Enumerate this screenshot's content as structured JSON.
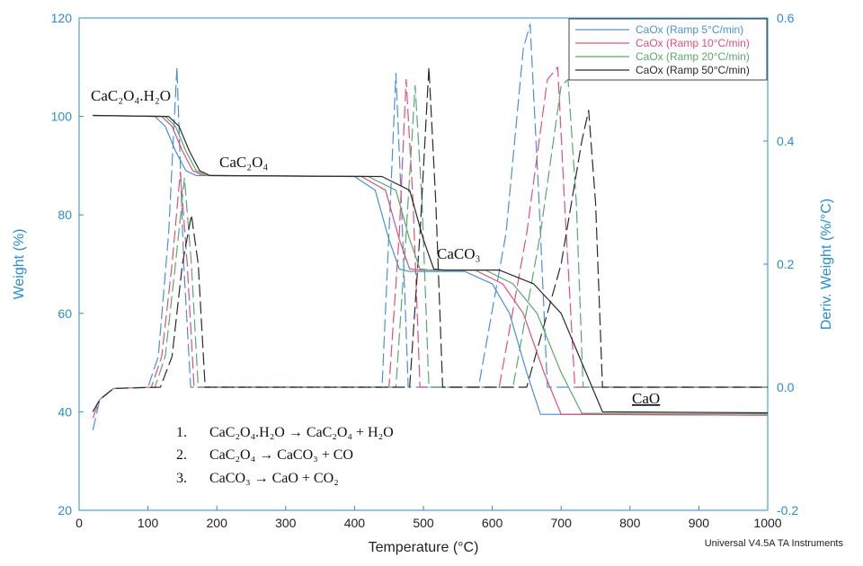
{
  "chart_data": {
    "type": "line",
    "xlabel": "Temperature (°C)",
    "ylabel": "Weight (%)",
    "y2label": "Deriv. Weight (%/°C)",
    "xlim": [
      0,
      1000
    ],
    "ylim": [
      20,
      120
    ],
    "y2lim": [
      -0.2,
      0.6
    ],
    "x_ticks": [
      "0",
      "100",
      "200",
      "300",
      "400",
      "500",
      "600",
      "700",
      "800",
      "900",
      "1000"
    ],
    "y_ticks": [
      "20",
      "40",
      "60",
      "80",
      "100",
      "120"
    ],
    "y2_ticks": [
      "-0.2",
      "0.0",
      "0.2",
      "0.4",
      "0.6"
    ],
    "legend_position": "top-right",
    "series": [
      {
        "name": "CaOx (Ramp 5°C/min)",
        "color": "#4a90d9",
        "weight": [
          [
            20,
            100.2
          ],
          [
            110,
            100
          ],
          [
            125,
            98
          ],
          [
            140,
            93
          ],
          [
            155,
            89
          ],
          [
            170,
            88
          ],
          [
            400,
            87.8
          ],
          [
            430,
            85
          ],
          [
            450,
            75
          ],
          [
            465,
            69
          ],
          [
            480,
            68.5
          ],
          [
            560,
            68.5
          ],
          [
            600,
            66
          ],
          [
            625,
            60
          ],
          [
            650,
            48
          ],
          [
            670,
            39.5
          ],
          [
            1000,
            39.3
          ]
        ],
        "deriv": [
          [
            20,
            -0.07
          ],
          [
            30,
            -0.02
          ],
          [
            50,
            -0.002
          ],
          [
            100,
            0
          ],
          [
            115,
            0.05
          ],
          [
            130,
            0.25
          ],
          [
            142,
            0.52
          ],
          [
            152,
            0.2
          ],
          [
            162,
            0
          ],
          [
            440,
            0
          ],
          [
            452,
            0.3
          ],
          [
            460,
            0.51
          ],
          [
            468,
            0.3
          ],
          [
            478,
            0
          ],
          [
            580,
            0
          ],
          [
            620,
            0.25
          ],
          [
            645,
            0.55
          ],
          [
            655,
            0.59
          ],
          [
            668,
            0.3
          ],
          [
            680,
            0
          ],
          [
            1000,
            0
          ]
        ]
      },
      {
        "name": "CaOx (Ramp 10°C/min)",
        "color": "#e0507a",
        "weight": [
          [
            20,
            100.2
          ],
          [
            120,
            100
          ],
          [
            135,
            98
          ],
          [
            150,
            93
          ],
          [
            165,
            89
          ],
          [
            180,
            88
          ],
          [
            410,
            87.8
          ],
          [
            445,
            85
          ],
          [
            465,
            75
          ],
          [
            480,
            69
          ],
          [
            495,
            68.8
          ],
          [
            575,
            68.8
          ],
          [
            615,
            66
          ],
          [
            645,
            60
          ],
          [
            675,
            48
          ],
          [
            700,
            39.5
          ],
          [
            1000,
            39.3
          ]
        ],
        "deriv": [
          [
            20,
            -0.05
          ],
          [
            30,
            -0.02
          ],
          [
            50,
            -0.002
          ],
          [
            105,
            0
          ],
          [
            120,
            0.05
          ],
          [
            135,
            0.2
          ],
          [
            147,
            0.35
          ],
          [
            157,
            0.2
          ],
          [
            167,
            0
          ],
          [
            450,
            0
          ],
          [
            465,
            0.25
          ],
          [
            475,
            0.5
          ],
          [
            485,
            0.3
          ],
          [
            495,
            0
          ],
          [
            610,
            0
          ],
          [
            650,
            0.25
          ],
          [
            680,
            0.5
          ],
          [
            695,
            0.52
          ],
          [
            705,
            0.3
          ],
          [
            720,
            0
          ],
          [
            1000,
            0
          ]
        ]
      },
      {
        "name": "CaOx (Ramp 20°C/min)",
        "color": "#5aa86a",
        "weight": [
          [
            20,
            100.2
          ],
          [
            125,
            100
          ],
          [
            140,
            98
          ],
          [
            155,
            93
          ],
          [
            170,
            89
          ],
          [
            185,
            88
          ],
          [
            420,
            87.8
          ],
          [
            460,
            85
          ],
          [
            480,
            75
          ],
          [
            495,
            69
          ],
          [
            510,
            68.8
          ],
          [
            590,
            68.8
          ],
          [
            630,
            66
          ],
          [
            665,
            60
          ],
          [
            700,
            48
          ],
          [
            730,
            39.7
          ],
          [
            1000,
            39.6
          ]
        ],
        "deriv": [
          [
            20,
            -0.04
          ],
          [
            30,
            -0.02
          ],
          [
            50,
            -0.002
          ],
          [
            110,
            0
          ],
          [
            125,
            0.05
          ],
          [
            140,
            0.2
          ],
          [
            153,
            0.34
          ],
          [
            163,
            0.2
          ],
          [
            173,
            0
          ],
          [
            460,
            0
          ],
          [
            475,
            0.25
          ],
          [
            488,
            0.49
          ],
          [
            498,
            0.3
          ],
          [
            508,
            0
          ],
          [
            630,
            0
          ],
          [
            670,
            0.25
          ],
          [
            700,
            0.49
          ],
          [
            710,
            0.5
          ],
          [
            722,
            0.3
          ],
          [
            732,
            0
          ],
          [
            1000,
            0
          ]
        ]
      },
      {
        "name": "CaOx (Ramp 50°C/min)",
        "color": "#2a2a2a",
        "weight": [
          [
            20,
            100.2
          ],
          [
            130,
            100
          ],
          [
            145,
            98
          ],
          [
            160,
            93
          ],
          [
            175,
            89
          ],
          [
            190,
            88
          ],
          [
            440,
            87.8
          ],
          [
            480,
            85
          ],
          [
            500,
            75
          ],
          [
            515,
            69
          ],
          [
            530,
            68.8
          ],
          [
            610,
            68.8
          ],
          [
            660,
            66
          ],
          [
            700,
            60
          ],
          [
            730,
            50
          ],
          [
            760,
            40
          ],
          [
            1000,
            39.8
          ]
        ],
        "deriv": [
          [
            20,
            -0.04
          ],
          [
            30,
            -0.02
          ],
          [
            50,
            -0.002
          ],
          [
            118,
            0
          ],
          [
            135,
            0.05
          ],
          [
            150,
            0.2
          ],
          [
            163,
            0.28
          ],
          [
            173,
            0.2
          ],
          [
            183,
            0
          ],
          [
            480,
            0
          ],
          [
            495,
            0.25
          ],
          [
            508,
            0.52
          ],
          [
            518,
            0.3
          ],
          [
            528,
            0
          ],
          [
            650,
            0
          ],
          [
            700,
            0.2
          ],
          [
            730,
            0.4
          ],
          [
            740,
            0.45
          ],
          [
            750,
            0.3
          ],
          [
            760,
            0
          ],
          [
            1000,
            0
          ]
        ]
      }
    ],
    "annotations": {
      "monohydrate": "CaC₂O₄.H₂O",
      "oxalate": "CaC₂O₄",
      "carbonate": "CaCO₃",
      "oxide": "CaO",
      "reactions": [
        {
          "num": "1.",
          "eq": "CaC₂O₄.H₂O → CaC₂O₄ + H₂O"
        },
        {
          "num": "2.",
          "eq": "CaC₂O₄ → CaCO₃ + CO"
        },
        {
          "num": "3.",
          "eq": "CaCO₃ → CaO + CO₂"
        }
      ]
    },
    "footer": "Universal V4.5A TA Instruments"
  }
}
